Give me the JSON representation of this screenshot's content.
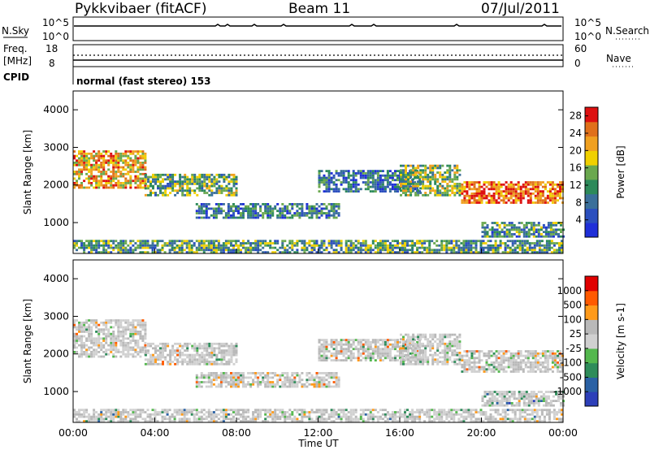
{
  "header": {
    "radar": "Pykkvibaer (fitACF)",
    "beam": "Beam 11",
    "date": "07/Jul/2011"
  },
  "side_panels": {
    "nsky_label": "N.Sky",
    "nsearch_label": "N.Search",
    "noise_ticks": [
      "10^5",
      "10^0"
    ],
    "freq_label_1": "Freq.",
    "freq_label_2": "[MHz]",
    "freq_ticks": [
      "18",
      "8"
    ],
    "nave_label": "Nave",
    "nave_ticks": [
      "60",
      "0"
    ],
    "cpid_label": "CPID",
    "cpid_text": "normal (fast stereo) 153"
  },
  "colors": {
    "power": [
      "#1f2fd8",
      "#2b4fbe",
      "#3a6f9a",
      "#2d8a5a",
      "#6aa84f",
      "#f0d000",
      "#f0a020",
      "#e0701a",
      "#dd1010"
    ],
    "velocity": [
      "#e00000",
      "#ff5a00",
      "#ff9a1a",
      "#b9b9b9",
      "#d0d0d0",
      "#54b84e",
      "#2e8c5a",
      "#2a61a4",
      "#2d3fb9"
    ]
  },
  "chart_data": [
    {
      "type": "heatmap",
      "name": "power",
      "xlabel": "",
      "ylabel": "Slant Range [km]",
      "xlim": [
        0,
        24
      ],
      "ylim": [
        180,
        4500
      ],
      "x_ticks": [
        "00:00",
        "04:00",
        "08:00",
        "12:00",
        "16:00",
        "20:00",
        "00:00"
      ],
      "y_ticks": [
        1000,
        2000,
        3000,
        4000
      ],
      "colorbar_label": "Power [dB]",
      "colorbar_ticks": [
        4,
        8,
        12,
        16,
        20,
        24,
        28
      ],
      "colorbar_range": [
        0,
        30
      ],
      "bands": [
        {
          "t": [
            0,
            3.5
          ],
          "r": [
            1900,
            2900
          ],
          "level": 0.7
        },
        {
          "t": [
            3.5,
            8
          ],
          "r": [
            1700,
            2300
          ],
          "level": 0.45
        },
        {
          "t": [
            6,
            13
          ],
          "r": [
            1100,
            1500
          ],
          "level": 0.3
        },
        {
          "t": [
            12,
            17
          ],
          "r": [
            1800,
            2400
          ],
          "level": 0.25
        },
        {
          "t": [
            16,
            19
          ],
          "r": [
            1700,
            2500
          ],
          "level": 0.5
        },
        {
          "t": [
            19,
            24
          ],
          "r": [
            1500,
            2100
          ],
          "level": 0.85
        },
        {
          "t": [
            20,
            24
          ],
          "r": [
            600,
            1000
          ],
          "level": 0.35
        },
        {
          "t": [
            0,
            24
          ],
          "r": [
            180,
            500
          ],
          "level": 0.4
        }
      ]
    },
    {
      "type": "heatmap",
      "name": "velocity",
      "xlabel": "Time UT",
      "ylabel": "Slant Range [km]",
      "xlim": [
        0,
        24
      ],
      "ylim": [
        180,
        4500
      ],
      "x_ticks": [
        "00:00",
        "04:00",
        "08:00",
        "12:00",
        "16:00",
        "20:00",
        "00:00"
      ],
      "y_ticks": [
        1000,
        2000,
        3000,
        4000
      ],
      "colorbar_label": "Velocity [m s-1]",
      "colorbar_ticks": [
        "1000",
        "500",
        "100",
        "25",
        "-25",
        "-100",
        "-500",
        "-1000"
      ],
      "bands": [
        {
          "t": [
            0,
            3.5
          ],
          "r": [
            1900,
            2900
          ],
          "level": 0.45
        },
        {
          "t": [
            3.5,
            8
          ],
          "r": [
            1700,
            2300
          ],
          "level": 0.45
        },
        {
          "t": [
            6,
            13
          ],
          "r": [
            1100,
            1500
          ],
          "level": 0.45
        },
        {
          "t": [
            12,
            17
          ],
          "r": [
            1800,
            2400
          ],
          "level": 0.45
        },
        {
          "t": [
            16,
            19
          ],
          "r": [
            1700,
            2500
          ],
          "level": 0.5
        },
        {
          "t": [
            19,
            24
          ],
          "r": [
            1500,
            2100
          ],
          "level": 0.45
        },
        {
          "t": [
            20,
            24
          ],
          "r": [
            600,
            1000
          ],
          "level": 0.6
        },
        {
          "t": [
            0,
            24
          ],
          "r": [
            180,
            500
          ],
          "level": 0.55
        }
      ]
    }
  ]
}
